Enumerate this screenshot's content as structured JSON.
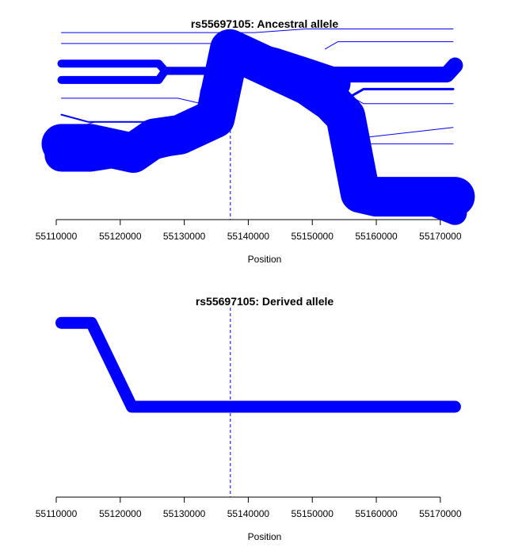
{
  "chart_data": [
    {
      "type": "line",
      "title": "rs55697105: Ancestral allele",
      "xlabel": "Position",
      "ylabel": "",
      "xlim": [
        55110000,
        55172000
      ],
      "xticks": [
        55110000,
        55120000,
        55130000,
        55140000,
        55150000,
        55160000,
        55170000
      ],
      "tick_labels": [
        "55110000",
        "55120000",
        "55130000",
        "55140000",
        "55150000",
        "55160000",
        "55170000"
      ],
      "ylim": [
        0,
        100
      ],
      "marker_x": 55137200,
      "color": "#0000ff",
      "grid": false,
      "series": [
        {
          "x": [
            55110800,
            55115400,
            55122000,
            55125300,
            55129300,
            55134800,
            55137100,
            55142000,
            55149300,
            55153000,
            55155200,
            55157500,
            55160000,
            55166000,
            55172300
          ],
          "y": [
            42,
            42,
            37,
            45,
            47,
            56,
            94,
            86,
            74,
            65,
            57,
            15,
            13,
            13,
            13
          ],
          "weight": 20
        },
        {
          "x": [
            55110800,
            55115400,
            55122500,
            55125700,
            55129200
          ],
          "y": [
            36,
            36,
            40,
            43,
            46
          ],
          "weight": 17
        },
        {
          "x": [
            55158000,
            55166000,
            55172300
          ],
          "y": [
            13,
            13,
            4
          ],
          "weight": 12
        },
        {
          "x": [
            55134900,
            55137100,
            55144000,
            55149300,
            55153500
          ],
          "y": [
            69,
            92,
            86,
            80,
            75
          ],
          "weight": 16
        },
        {
          "x": [
            55110800,
            55126000,
            55127000,
            55134000
          ],
          "y": [
            86,
            86,
            82,
            82
          ],
          "weight": 4
        },
        {
          "x": [
            55110800,
            55126000,
            55127000,
            55134000
          ],
          "y": [
            77,
            77,
            82,
            82
          ],
          "weight": 4
        },
        {
          "x": [
            55153500,
            55157000,
            55171000,
            55172300
          ],
          "y": [
            80,
            80,
            80,
            85
          ],
          "weight": 8
        },
        {
          "x": [
            55110800,
            55141000,
            55149000,
            55172000
          ],
          "y": [
            103,
            103,
            105,
            105
          ],
          "weight": 1
        },
        {
          "x": [
            55110800,
            55134500,
            55137000
          ],
          "y": [
            97,
            97,
            99
          ],
          "weight": 1
        },
        {
          "x": [
            55110800,
            55115000,
            55127000,
            55134000
          ],
          "y": [
            58,
            54,
            54,
            58
          ],
          "weight": 2
        },
        {
          "x": [
            55110800,
            55129000,
            55134000
          ],
          "y": [
            67,
            67,
            63
          ],
          "weight": 1
        },
        {
          "x": [
            55110800,
            55116000,
            55127000
          ],
          "y": [
            48,
            54,
            54
          ],
          "weight": 1
        },
        {
          "x": [
            55153000,
            55156000,
            55158000,
            55172000
          ],
          "y": [
            68,
            68,
            72,
            72
          ],
          "weight": 3
        },
        {
          "x": [
            55156000,
            55158000,
            55172000
          ],
          "y": [
            68,
            64,
            64
          ],
          "weight": 1
        },
        {
          "x": [
            55152000,
            55154000,
            55172000
          ],
          "y": [
            94,
            98,
            98
          ],
          "weight": 1
        },
        {
          "x": [
            55157000,
            55172000
          ],
          "y": [
            45,
            51
          ],
          "weight": 1
        },
        {
          "x": [
            55157000,
            55159000,
            55172000
          ],
          "y": [
            45,
            42,
            42
          ],
          "weight": 1
        }
      ]
    },
    {
      "type": "line",
      "title": "rs55697105: Derived allele",
      "xlabel": "Position",
      "ylabel": "",
      "xlim": [
        55110000,
        55172000
      ],
      "xticks": [
        55110000,
        55120000,
        55130000,
        55140000,
        55150000,
        55160000,
        55170000
      ],
      "tick_labels": [
        "55110000",
        "55120000",
        "55130000",
        "55140000",
        "55150000",
        "55160000",
        "55170000"
      ],
      "ylim": [
        0,
        100
      ],
      "marker_x": 55137200,
      "color": "#0000ff",
      "grid": false,
      "series": [
        {
          "x": [
            55110800,
            55115500,
            55121800,
            55172300
          ],
          "y": [
            96,
            96,
            50,
            50
          ],
          "weight": 6
        }
      ]
    }
  ]
}
